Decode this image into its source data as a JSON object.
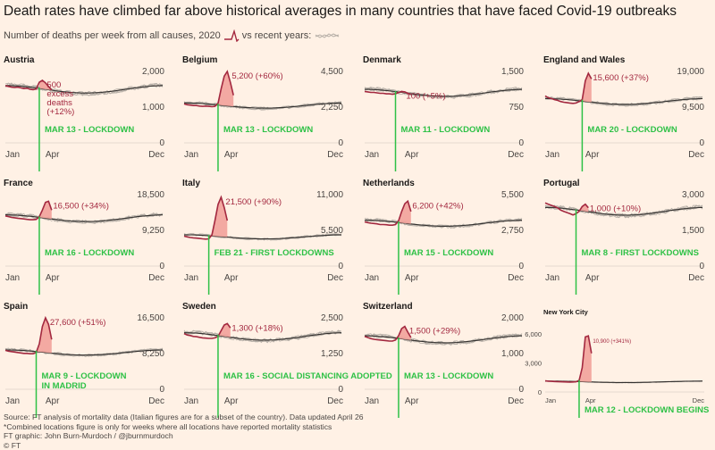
{
  "title": "Death rates have climbed far above historical averages in many countries that have faced Covid-19 outbreaks",
  "legend": {
    "prefix": "Number of deaths per week from all causes,",
    "year": "2020",
    "suffix": "vs recent years:"
  },
  "footer": {
    "line1": "Source: FT analysis of mortality data (Italian figures are for a subset of the country). Data updated April 26",
    "line2": "*Combined locations figure is only for weeks where all locations have reported mortality statistics",
    "line3": "FT graphic: John Burn-Murdoch / @jburnmurdoch",
    "line4": "© FT"
  },
  "colors": {
    "current": "#a3283f",
    "excess_fill": "#f2a19a",
    "history": "#b5aea6",
    "baseline": "#33302e",
    "lockdown": "#2ec146"
  },
  "chart_data": [
    {
      "type": "line",
      "title": "Austria",
      "x_labels": [
        "Jan",
        "Apr",
        "Dec"
      ],
      "y_ticks": [
        "2,000",
        "1,000",
        "0"
      ],
      "ylim": [
        0,
        2000
      ],
      "annotation": [
        "500",
        "excess",
        "deaths",
        "(+12%)"
      ],
      "lockdown": "MAR 13 - LOCKDOWN",
      "lockdown_week": 11,
      "baseline": 1500,
      "current": [
        1600,
        1580,
        1560,
        1550,
        1560,
        1540,
        1520,
        1530,
        1500,
        1490,
        1510,
        1700,
        1750,
        1680,
        1580,
        1480
      ],
      "peak_week": 12
    },
    {
      "type": "line",
      "title": "Belgium",
      "x_labels": [
        "Jan",
        "Apr",
        "Dec"
      ],
      "y_ticks": [
        "4,500",
        "2,250",
        "0"
      ],
      "ylim": [
        0,
        4500
      ],
      "annotation": [
        "5,200 (+60%)"
      ],
      "lockdown": "MAR 13 - LOCKDOWN",
      "lockdown_week": 11,
      "baseline": 2350,
      "current": [
        2450,
        2400,
        2380,
        2350,
        2350,
        2320,
        2300,
        2320,
        2300,
        2280,
        2300,
        2500,
        3400,
        4200,
        4500,
        3800,
        3000
      ],
      "peak_week": 14
    },
    {
      "type": "line",
      "title": "Denmark",
      "x_labels": [
        "Jan",
        "Apr",
        "Dec"
      ],
      "y_ticks": [
        "1,500",
        "750",
        "0"
      ],
      "ylim": [
        0,
        1500
      ],
      "annotation": [
        "100 (+5%)"
      ],
      "lockdown": "MAR 11 - LOCKDOWN",
      "lockdown_week": 10,
      "baseline": 1050,
      "current": [
        1080,
        1070,
        1060,
        1060,
        1050,
        1040,
        1040,
        1030,
        1030,
        1020,
        1030,
        1060,
        1080,
        1070,
        1040,
        1020
      ],
      "peak_week": 12
    },
    {
      "type": "line",
      "title": "England and Wales",
      "x_labels": [
        "Jan",
        "Apr",
        "Dec"
      ],
      "y_ticks": [
        "19,000",
        "9,500",
        "0"
      ],
      "ylim": [
        0,
        19000
      ],
      "annotation": [
        "15,600 (+37%)"
      ],
      "lockdown": "MAR 20 - LOCKDOWN",
      "lockdown_week": 12,
      "baseline": 11000,
      "current": [
        12500,
        12000,
        11800,
        11500,
        11300,
        11000,
        10800,
        10700,
        10600,
        10500,
        10600,
        11000,
        11500,
        16500,
        18500,
        17000
      ],
      "peak_week": 14
    },
    {
      "type": "line",
      "title": "France",
      "x_labels": [
        "Jan",
        "Apr",
        "Dec"
      ],
      "y_ticks": [
        "18,500",
        "9,250",
        "0"
      ],
      "ylim": [
        0,
        18500
      ],
      "annotation": [
        "16,500 (+34%)"
      ],
      "lockdown": "MAR 16 - LOCKDOWN",
      "lockdown_week": 11,
      "baseline": 12400,
      "current": [
        13000,
        12800,
        12600,
        12500,
        12400,
        12300,
        12200,
        12100,
        12000,
        12000,
        12100,
        12800,
        14500,
        16500,
        16800,
        14500
      ],
      "peak_week": 14
    },
    {
      "type": "line",
      "title": "Italy",
      "x_labels": [
        "Jan",
        "Apr",
        "Dec"
      ],
      "y_ticks": [
        "11,000",
        "5,500",
        "0"
      ],
      "ylim": [
        0,
        11000
      ],
      "annotation": [
        "21,500 (+90%)"
      ],
      "lockdown": "FEB 21 - FIRST LOCKDOWNS",
      "lockdown_week": 8,
      "baseline": 4500,
      "current": [
        4600,
        4500,
        4400,
        4350,
        4300,
        4250,
        4200,
        4150,
        4200,
        4800,
        7000,
        9500,
        10600,
        9000,
        7000
      ],
      "peak_week": 12
    },
    {
      "type": "line",
      "title": "Netherlands",
      "x_labels": [
        "Jan",
        "Apr",
        "Dec"
      ],
      "y_ticks": [
        "5,500",
        "2,750",
        "0"
      ],
      "ylim": [
        0,
        5500
      ],
      "annotation": [
        "6,200 (+42%)"
      ],
      "lockdown": "MAR 15 - LOCKDOWN",
      "lockdown_week": 11,
      "baseline": 3300,
      "current": [
        3400,
        3350,
        3300,
        3280,
        3250,
        3200,
        3200,
        3180,
        3150,
        3150,
        3200,
        3500,
        4200,
        4800,
        5000,
        4200
      ],
      "peak_week": 14
    },
    {
      "type": "line",
      "title": "Portugal",
      "x_labels": [
        "Jan",
        "Apr",
        "Dec"
      ],
      "y_ticks": [
        "3,000",
        "1,500",
        "0"
      ],
      "ylim": [
        0,
        3000
      ],
      "annotation": [
        "1,000 (+10%)"
      ],
      "lockdown": "MAR 8 - FIRST LOCKDOWNS",
      "lockdown_week": 10,
      "baseline": 2300,
      "current": [
        2650,
        2600,
        2550,
        2500,
        2450,
        2350,
        2300,
        2250,
        2200,
        2150,
        2200,
        2300,
        2500,
        2600,
        2450
      ],
      "peak_week": 13
    },
    {
      "type": "line",
      "title": "Spain",
      "x_labels": [
        "Jan",
        "Apr",
        "Dec"
      ],
      "y_ticks": [
        "16,500",
        "8,250",
        "0"
      ],
      "ylim": [
        0,
        16500
      ],
      "annotation": [
        "27,600 (+51%)"
      ],
      "lockdown": "MAR 9 - LOCKDOWN\nIN MADRID",
      "lockdown_week": 10,
      "baseline": 8500,
      "current": [
        9000,
        8800,
        8700,
        8600,
        8500,
        8400,
        8300,
        8300,
        8200,
        8200,
        8500,
        10500,
        14500,
        16500,
        15000,
        11500
      ],
      "peak_week": 13
    },
    {
      "type": "line",
      "title": "Sweden",
      "x_labels": [
        "Jan",
        "Apr",
        "Dec"
      ],
      "y_ticks": [
        "2,500",
        "1,250",
        "0"
      ],
      "ylim": [
        0,
        2500
      ],
      "annotation": [
        "1,300 (+18%)"
      ],
      "lockdown": "MAR 16 - SOCIAL DISTANCING ADOPTED",
      "lockdown_week": 11,
      "baseline": 1850,
      "current": [
        1950,
        1900,
        1880,
        1850,
        1840,
        1820,
        1800,
        1790,
        1780,
        1780,
        1800,
        1850,
        2050,
        2250,
        2300,
        2150
      ],
      "peak_week": 14
    },
    {
      "type": "line",
      "title": "Switzerland",
      "x_labels": [
        "Jan",
        "Apr",
        "Dec"
      ],
      "y_ticks": [
        "2,000",
        "1,000",
        "0"
      ],
      "ylim": [
        0,
        2000
      ],
      "annotation": [
        "1,500 (+29%)"
      ],
      "lockdown": "MAR 13 - LOCKDOWN",
      "lockdown_week": 11,
      "baseline": 1400,
      "current": [
        1480,
        1450,
        1420,
        1400,
        1390,
        1380,
        1370,
        1360,
        1350,
        1350,
        1380,
        1500,
        1700,
        1760,
        1600,
        1450
      ],
      "peak_week": 13
    },
    {
      "type": "line",
      "title": "New York City",
      "x_labels": [
        "Jan",
        "Apr",
        "Dec"
      ],
      "y_ticks": [
        "6,000",
        "3,000",
        "0"
      ],
      "ylim": [
        0,
        6000
      ],
      "annotation": [
        "10,900 (+341%)"
      ],
      "lockdown": "MAR 12 - LOCKDOWN BEGINS",
      "lockdown_week": 11,
      "baseline": 1050,
      "current": [
        1150,
        1120,
        1100,
        1080,
        1060,
        1050,
        1040,
        1030,
        1020,
        1030,
        1050,
        1200,
        2500,
        5700,
        5800,
        4000
      ],
      "peak_week": 14
    }
  ]
}
